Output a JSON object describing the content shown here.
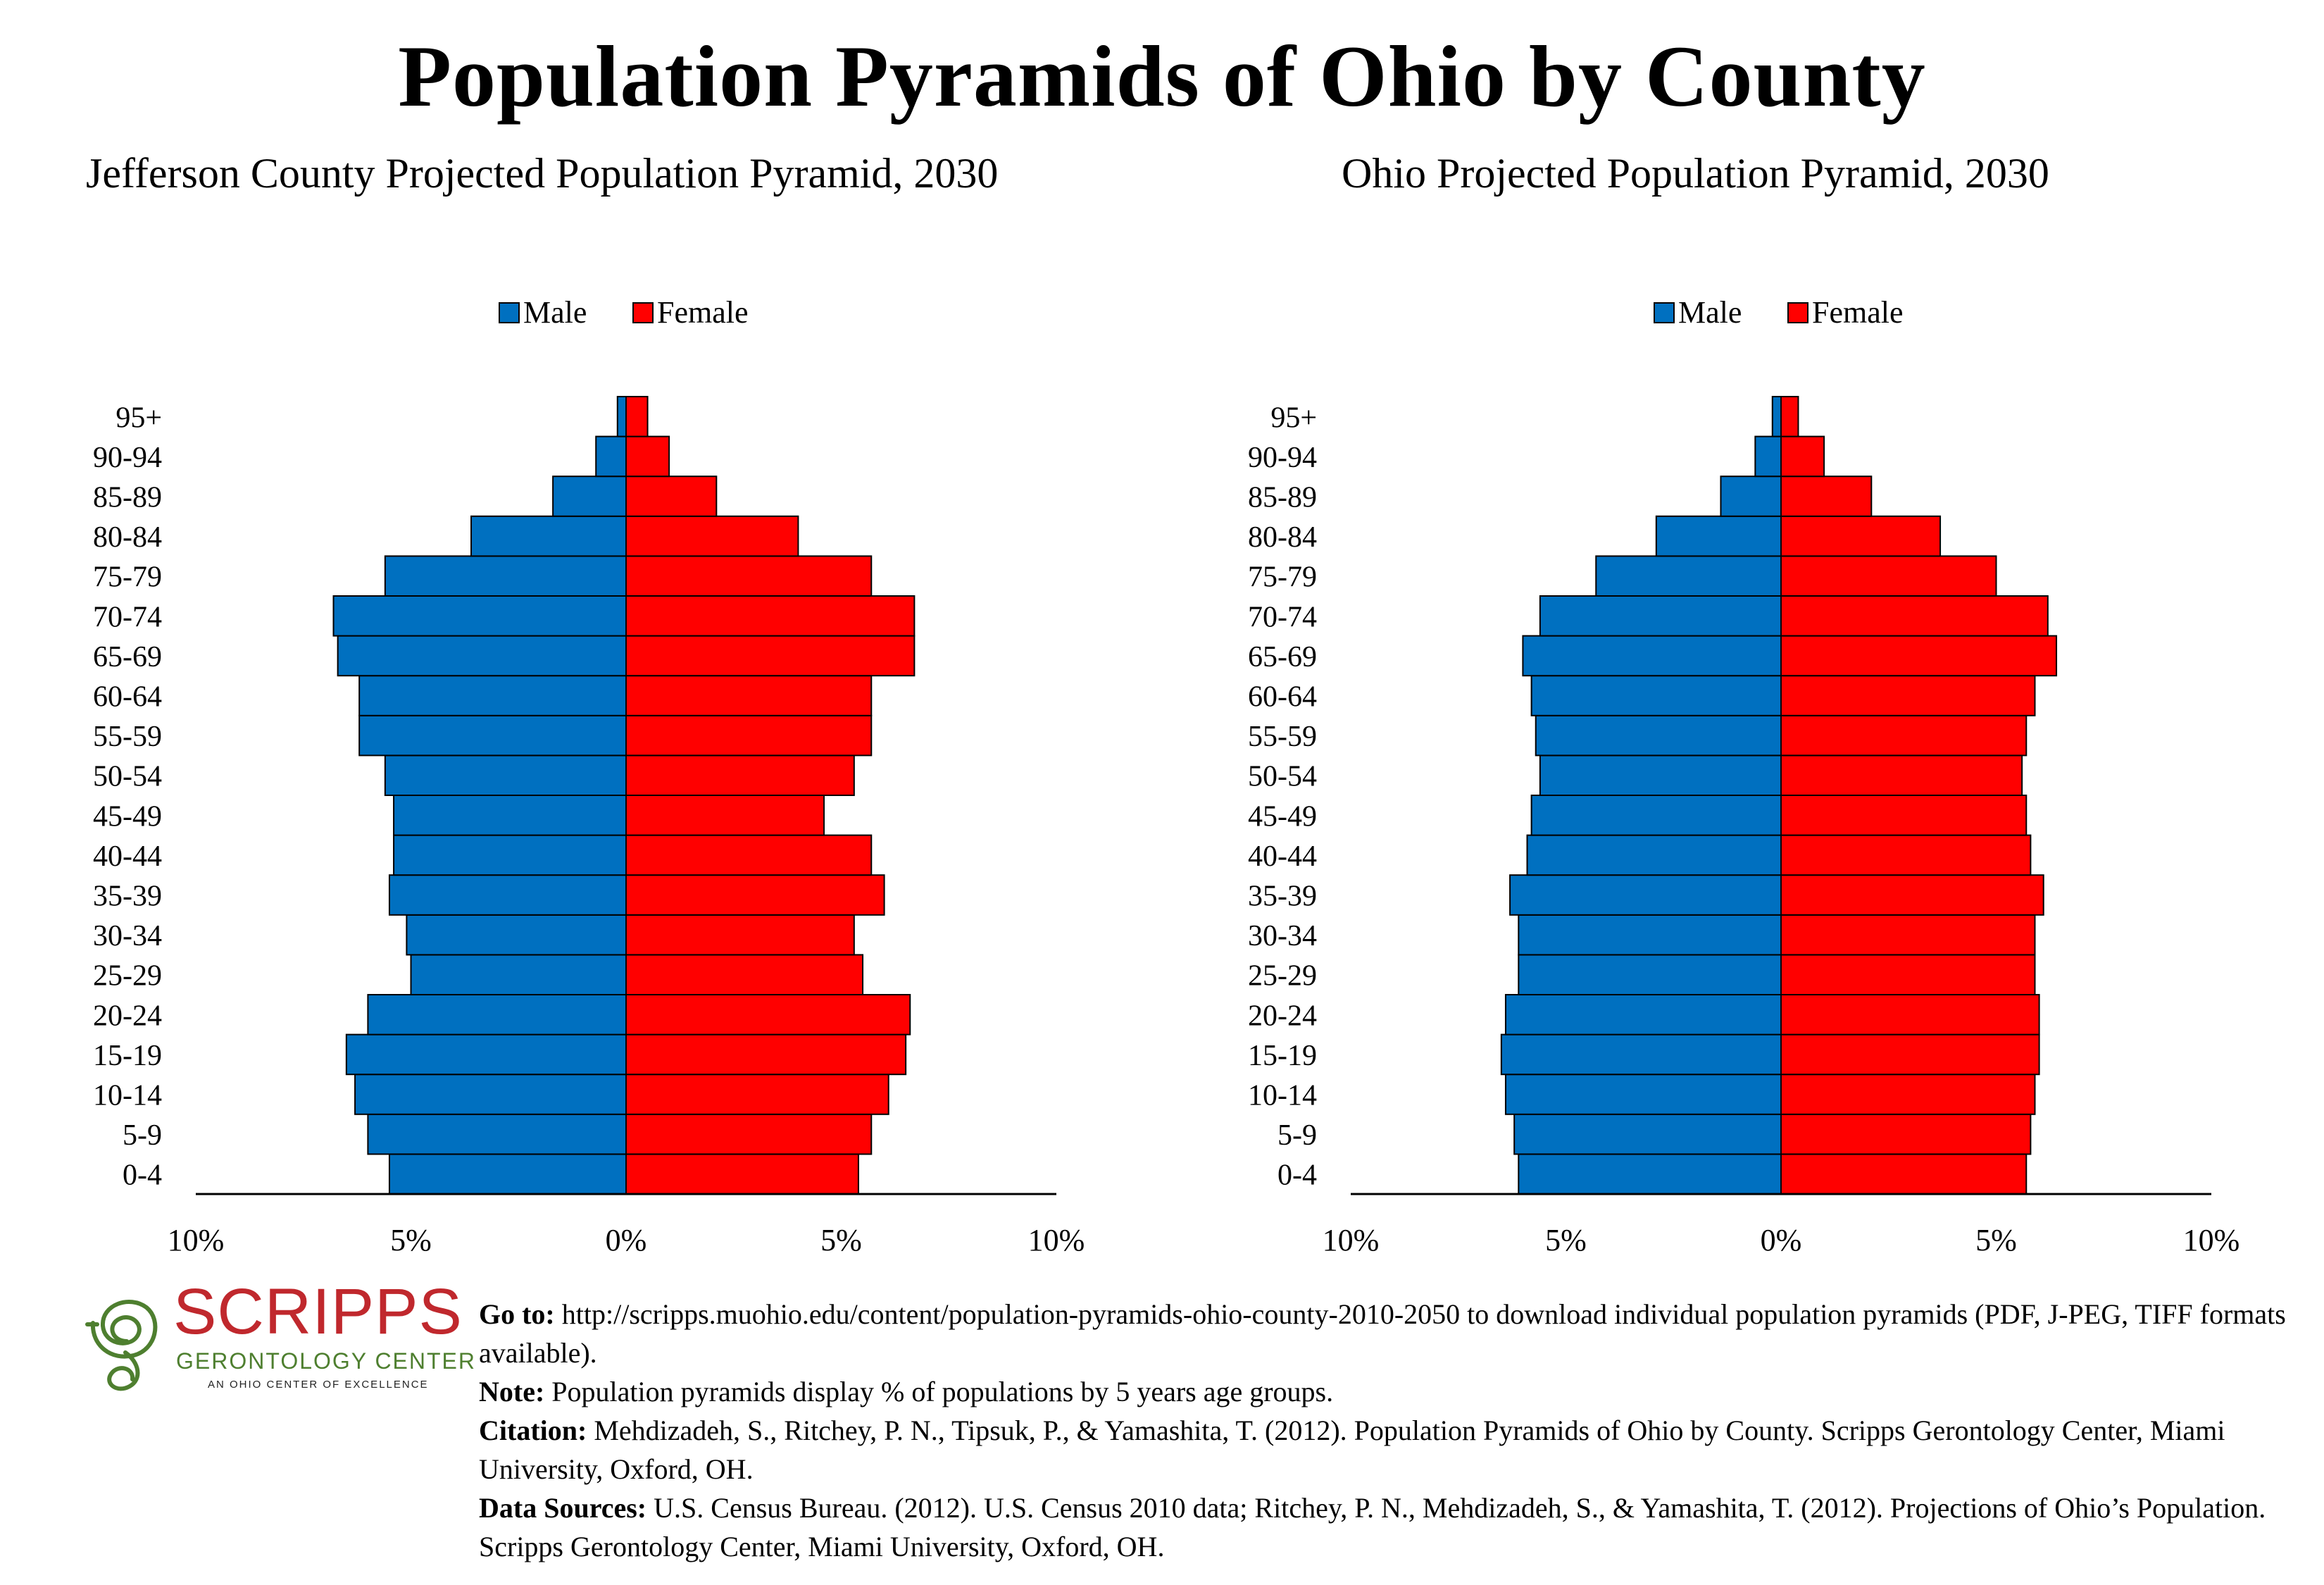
{
  "title": "Population Pyramids of Ohio by County",
  "chart_data": [
    {
      "type": "bar",
      "title": "Jefferson County Projected Population Pyramid, 2030",
      "legend": [
        "Male",
        "Female"
      ],
      "legend_position": "top-center",
      "categories": [
        "0-4",
        "5-9",
        "10-14",
        "15-19",
        "20-24",
        "25-29",
        "30-34",
        "35-39",
        "40-44",
        "45-49",
        "50-54",
        "55-59",
        "60-64",
        "65-69",
        "70-74",
        "75-79",
        "80-84",
        "85-89",
        "90-94",
        "95+"
      ],
      "series": [
        {
          "name": "Male",
          "color": "#0070c0",
          "values": [
            5.5,
            6.0,
            6.3,
            6.5,
            6.0,
            5.0,
            5.1,
            5.5,
            5.4,
            5.4,
            5.6,
            6.2,
            6.2,
            6.7,
            6.8,
            5.6,
            3.6,
            1.7,
            0.7,
            0.2
          ]
        },
        {
          "name": "Female",
          "color": "#ff0000",
          "values": [
            5.4,
            5.7,
            6.1,
            6.5,
            6.6,
            5.5,
            5.3,
            6.0,
            5.7,
            4.6,
            5.3,
            5.7,
            5.7,
            6.7,
            6.7,
            5.7,
            4.0,
            2.1,
            1.0,
            0.5
          ]
        }
      ],
      "xlabel": "",
      "ylabel": "",
      "xlim": [
        -10,
        10
      ],
      "xticks": [
        "10%",
        "5%",
        "0%",
        "5%",
        "10%"
      ]
    },
    {
      "type": "bar",
      "title": "Ohio Projected Population Pyramid, 2030",
      "legend": [
        "Male",
        "Female"
      ],
      "legend_position": "top-center",
      "categories": [
        "0-4",
        "5-9",
        "10-14",
        "15-19",
        "20-24",
        "25-29",
        "30-34",
        "35-39",
        "40-44",
        "45-49",
        "50-54",
        "55-59",
        "60-64",
        "65-69",
        "70-74",
        "75-79",
        "80-84",
        "85-89",
        "90-94",
        "95+"
      ],
      "series": [
        {
          "name": "Male",
          "color": "#0070c0",
          "values": [
            6.1,
            6.2,
            6.4,
            6.5,
            6.4,
            6.1,
            6.1,
            6.3,
            5.9,
            5.8,
            5.6,
            5.7,
            5.8,
            6.0,
            5.6,
            4.3,
            2.9,
            1.4,
            0.6,
            0.2
          ]
        },
        {
          "name": "Female",
          "color": "#ff0000",
          "values": [
            5.7,
            5.8,
            5.9,
            6.0,
            6.0,
            5.9,
            5.9,
            6.1,
            5.8,
            5.7,
            5.6,
            5.7,
            5.9,
            6.4,
            6.2,
            5.0,
            3.7,
            2.1,
            1.0,
            0.4
          ]
        }
      ],
      "xlabel": "",
      "ylabel": "",
      "xlim": [
        -10,
        10
      ],
      "xticks": [
        "10%",
        "5%",
        "0%",
        "5%",
        "10%"
      ]
    }
  ],
  "logo": {
    "word": "SCRIPPS",
    "sub": "GERONTOLOGY CENTER",
    "tag": "AN OHIO CENTER OF EXCELLENCE",
    "red": "#c0282d",
    "green": "#4e7f2f"
  },
  "notes": [
    {
      "label": "Go to:",
      "text": " http://scripps.muohio.edu/content/population-pyramids-ohio-county-2010-2050 to download individual population pyramids (PDF, J-PEG, TIFF formats available)."
    },
    {
      "label": "Note:",
      "text": " Population pyramids display % of populations by 5 years age groups."
    },
    {
      "label": "Citation:",
      "text": " Mehdizadeh, S., Ritchey, P. N., Tipsuk, P., & Yamashita, T. (2012). Population Pyramids of Ohio by County. Scripps Gerontology Center, Miami University, Oxford, OH."
    },
    {
      "label": "Data Sources:",
      "text": " U.S. Census Bureau. (2012). U.S. Census 2010 data; Ritchey, P. N., Mehdizadeh, S., & Yamashita, T. (2012). Projections of Ohio’s Population. Scripps Gerontology Center, Miami University, Oxford, OH."
    }
  ]
}
